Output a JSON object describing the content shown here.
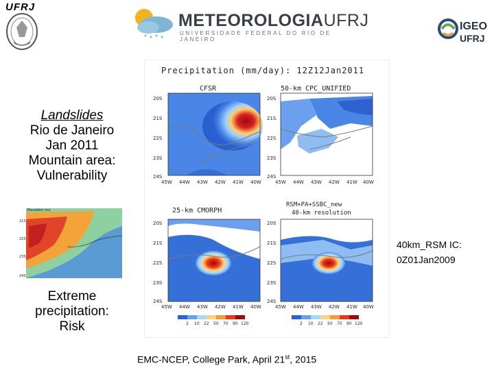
{
  "logos": {
    "ufrj_left": "UFRJ",
    "meteorologia_main": "METEOROLOGIA",
    "meteorologia_accent": "UFRJ",
    "meteorologia_sub": "UNIVERSIDADE FEDERAL DO RIO DE JANEIRO",
    "igeo_line1": "IGEO",
    "igeo_line2": "UFRJ"
  },
  "left_block": {
    "title": "Landslides",
    "lines": [
      "Rio de Janeiro",
      "Jan 2011",
      "Mountain area:",
      "Vulnerability"
    ]
  },
  "left_bottom": {
    "lines": [
      "Extreme",
      "precipitation:",
      "Risk"
    ]
  },
  "figure": {
    "title": "Precipitation (mm/day): 12Z12Jan2011",
    "panels": [
      {
        "title": "CFSR"
      },
      {
        "title": "50-km CPC_UNIFIED"
      },
      {
        "title": "25-km CMORPH"
      },
      {
        "title_line1": "RSM+PA+SSBC_new",
        "title_line2": "40-km resolution"
      }
    ],
    "lat_labels": [
      "20S",
      "21S",
      "22S",
      "23S",
      "24S"
    ],
    "lon_labels": [
      "45W",
      "44W",
      "43W",
      "42W",
      "41W",
      "40W"
    ],
    "colorbar_labels": [
      "2",
      "10",
      "22",
      "50",
      "70",
      "90",
      "120"
    ]
  },
  "thumb": {
    "title": "Elevation (m)",
    "lat_labels": [
      "21S",
      "22S",
      "23S",
      "24S"
    ]
  },
  "rsm_note": {
    "line1": "40km_RSM IC:",
    "line2": "0Z01Jan2009"
  },
  "footer": {
    "text": "EMC-NCEP, College Park, April 21",
    "sup": "st",
    "year": ", 2015"
  }
}
